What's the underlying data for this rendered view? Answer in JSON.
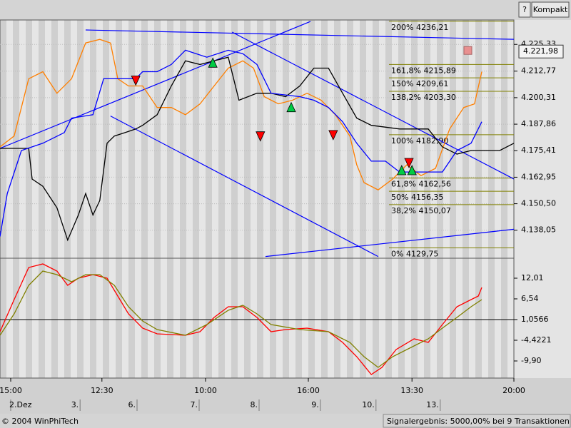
{
  "ui": {
    "help_button": "?",
    "compact_button": "Kompakt"
  },
  "footer": {
    "copyright": "© 2004 WinPhiTech",
    "status": "Signalergebnis: 5000,00% bei 9 Transaktionen"
  },
  "chart_data": [
    {
      "type": "line",
      "xlim": [
        0,
        120
      ],
      "ylim": [
        4124.9,
        4236.8
      ],
      "grid": true,
      "yticks": [
        {
          "value": 4225.33,
          "label": "4.225,33"
        },
        {
          "value": 4212.77,
          "label": "4.212,77"
        },
        {
          "value": 4200.31,
          "label": "4.200,31"
        },
        {
          "value": 4187.86,
          "label": "4.187,86"
        },
        {
          "value": 4175.41,
          "label": "4.175,41"
        },
        {
          "value": 4162.95,
          "label": "4.162,95"
        },
        {
          "value": 4150.5,
          "label": "4.150,50"
        },
        {
          "value": 4138.05,
          "label": "4.138,05"
        }
      ],
      "last": {
        "value": 4221.98,
        "label": "4.221,98"
      },
      "series": [
        {
          "color": "#ff7f00",
          "x": [
            0,
            3.3,
            6.7,
            10,
            13.3,
            16.7,
            20,
            23.3,
            25.8,
            27.5,
            30,
            33.3,
            36.7,
            40,
            43.3,
            46.7,
            50,
            53.3,
            56.7,
            59.2,
            61.7,
            65,
            68.3,
            71.7,
            75,
            78.3,
            81.7,
            83.3,
            85,
            88.3,
            91.7,
            95,
            98.3,
            101.7,
            105,
            108.3,
            110.8,
            112.5
          ],
          "values": [
            4177.2,
            4182.3,
            4209.2,
            4212.5,
            4202.4,
            4209.2,
            4226.0,
            4227.7,
            4226.0,
            4209.2,
            4205.8,
            4205.8,
            4195.7,
            4195.7,
            4192.3,
            4197.4,
            4205.8,
            4214.2,
            4217.6,
            4214.2,
            4200.8,
            4197.4,
            4199.1,
            4202.4,
            4199.1,
            4192.3,
            4182.3,
            4168.8,
            4160.4,
            4157.0,
            4162.1,
            4168.8,
            4163.7,
            4167.1,
            4185.6,
            4195.7,
            4197.4,
            4212.5
          ]
        },
        {
          "color": "#000000",
          "x": [
            0,
            6.7,
            7.5,
            10,
            13.3,
            15.8,
            18.3,
            20,
            21.7,
            23.3,
            25,
            26.7,
            29.2,
            31.7,
            33.3,
            36.7,
            40,
            43.3,
            46.7,
            50,
            53.3,
            55.8,
            60,
            63.3,
            66.7,
            70,
            73.3,
            76.7,
            80,
            83.3,
            86.7,
            93.3,
            100,
            103.3,
            106.7,
            110,
            116.7,
            120
          ],
          "values": [
            4176.5,
            4176.5,
            4162.1,
            4158.7,
            4148.6,
            4133.4,
            4145.2,
            4155.3,
            4145.2,
            4152.0,
            4178.9,
            4182.3,
            4183.9,
            4185.6,
            4187.3,
            4192.3,
            4205.8,
            4217.6,
            4215.9,
            4217.6,
            4219.3,
            4199.1,
            4202.4,
            4202.4,
            4200.8,
            4205.8,
            4214.2,
            4214.2,
            4202.4,
            4190.7,
            4187.3,
            4185.6,
            4185.6,
            4177.2,
            4173.8,
            4175.5,
            4175.5,
            4178.9
          ]
        },
        {
          "color": "#0000ff",
          "x": [
            0,
            1.7,
            5,
            10,
            15,
            16.7,
            21.7,
            24.2,
            31.7,
            33.3,
            36.7,
            40,
            43.3,
            48.3,
            53.3,
            56.7,
            60,
            63.3,
            70,
            73.3,
            76.7,
            80,
            83.3,
            86.7,
            90,
            93.3,
            100,
            103.3,
            106.7,
            110,
            112.5
          ],
          "values": [
            4135.1,
            4155.3,
            4175.5,
            4178.9,
            4183.9,
            4190.7,
            4192.3,
            4209.2,
            4209.2,
            4212.5,
            4212.5,
            4215.9,
            4222.6,
            4219.3,
            4222.6,
            4221.0,
            4215.9,
            4202.4,
            4200.8,
            4199.1,
            4195.7,
            4189.0,
            4178.9,
            4170.5,
            4170.5,
            4165.4,
            4165.4,
            4165.4,
            4175.5,
            4178.9,
            4189.0
          ]
        }
      ],
      "trendlines": [
        {
          "color": "#0000ff",
          "x": [
            0,
            72.5
          ],
          "values": [
            4176.5,
            4236.1
          ]
        },
        {
          "color": "#0000ff",
          "x": [
            25.8,
            88.3
          ],
          "values": [
            4191.7,
            4125.7
          ]
        },
        {
          "color": "#0000ff",
          "x": [
            54.2,
            120
          ],
          "values": [
            4231.1,
            4162.1
          ]
        },
        {
          "color": "#0000ff",
          "x": [
            62,
            120
          ],
          "values": [
            4125.7,
            4138.5
          ]
        },
        {
          "color": "#0000ff",
          "x": [
            20,
            120
          ],
          "values": [
            4232.1,
            4227.7
          ]
        }
      ],
      "fib_levels": [
        {
          "value": 4236.21,
          "label": "200% 4236,21"
        },
        {
          "value": 4215.89,
          "label": "161,8% 4215,89"
        },
        {
          "value": 4209.61,
          "label": "150% 4209,61"
        },
        {
          "value": 4203.3,
          "label": "138,2% 4203,30"
        },
        {
          "value": 4182.9,
          "label": "100% 4182,90"
        },
        {
          "value": 4162.56,
          "label": "61,8% 4162,56"
        },
        {
          "value": 4156.35,
          "label": "50% 4156,35"
        },
        {
          "value": 4150.07,
          "label": "38,2% 4150,07"
        },
        {
          "value": 4129.75,
          "label": "0% 4129,75"
        }
      ],
      "fib_color": "#808000",
      "sell_signals": {
        "color": "#ff0000",
        "x": [
          31.7,
          60.8,
          77.8,
          95.5
        ],
        "values": [
          4208.5,
          4182.3,
          4182.9,
          4169.8
        ]
      },
      "buy_signals": {
        "color": "#00cc44",
        "x": [
          49.7,
          68,
          93.8,
          96.2
        ],
        "values": [
          4216.6,
          4195.7,
          4166.1,
          4166.1
        ]
      }
    },
    {
      "type": "line",
      "xlim": [
        0,
        120
      ],
      "ylim": [
        -14.43,
        17.3
      ],
      "hline": 1.0566,
      "yticks": [
        {
          "value": 12.01,
          "label": "12,01"
        },
        {
          "value": 6.54,
          "label": "6,54"
        },
        {
          "value": 1.0566,
          "label": "1,0566"
        },
        {
          "value": -4.4221,
          "label": "-4,4221"
        },
        {
          "value": -9.9,
          "label": "-9,90"
        }
      ],
      "xticks": [
        {
          "value": 2.5,
          "label": "15:00"
        },
        {
          "value": 23.8,
          "label": "12:30"
        },
        {
          "value": 48,
          "label": "10:00"
        },
        {
          "value": 72,
          "label": "16:00"
        },
        {
          "value": 96.2,
          "label": "13:30"
        },
        {
          "value": 120,
          "label": "20:00"
        }
      ],
      "date_labels": [
        {
          "value": 2.5,
          "label": "2.Dez"
        },
        {
          "value": 18.7,
          "label": "3."
        },
        {
          "value": 32,
          "label": "6."
        },
        {
          "value": 46.5,
          "label": "7."
        },
        {
          "value": 60.5,
          "label": "8."
        },
        {
          "value": 74.8,
          "label": "9."
        },
        {
          "value": 87.8,
          "label": "10."
        },
        {
          "value": 102.8,
          "label": "13."
        }
      ],
      "series": [
        {
          "color": "#ff0000",
          "x": [
            0,
            3.3,
            6.7,
            10,
            13.3,
            15.8,
            18.3,
            21.7,
            25,
            27.5,
            30,
            33.3,
            36.7,
            43.3,
            46.7,
            50,
            53.3,
            56.7,
            60,
            63.3,
            66.7,
            71.7,
            76.7,
            80,
            83.3,
            86.7,
            89.2,
            92.5,
            96.7,
            100,
            103.3,
            106.7,
            110,
            111.7,
            112.5
          ],
          "values": [
            -2.16,
            6.34,
            14.84,
            15.79,
            13.9,
            10.12,
            12.01,
            12.95,
            12.01,
            7.29,
            2.56,
            -1.21,
            -2.72,
            -3.1,
            -2.16,
            1.62,
            4.45,
            4.45,
            1.62,
            -2.16,
            -1.59,
            -1.21,
            -2.16,
            -4.99,
            -8.77,
            -13.49,
            -11.6,
            -6.88,
            -4.05,
            -4.99,
            -0.27,
            4.45,
            6.34,
            7.29,
            9.55
          ]
        },
        {
          "color": "#808000",
          "x": [
            0,
            3.3,
            6.7,
            10,
            13.3,
            16.7,
            20,
            23.3,
            26.7,
            30,
            33.3,
            36.7,
            43.3,
            48.3,
            53.3,
            56.7,
            60,
            63.3,
            70,
            76.7,
            81.7,
            85,
            88.3,
            91.7,
            95,
            100,
            103.3,
            106.7,
            110,
            112.5
          ],
          "values": [
            -3.1,
            2.56,
            10.12,
            13.9,
            12.95,
            11.07,
            12.95,
            12.95,
            10.12,
            4.45,
            0.68,
            -1.59,
            -3.1,
            -0.27,
            3.51,
            4.83,
            2.56,
            -0.27,
            -1.59,
            -2.16,
            -4.99,
            -8.77,
            -11.6,
            -8.77,
            -6.88,
            -4.05,
            -1.21,
            1.62,
            4.45,
            6.34
          ]
        }
      ]
    }
  ]
}
